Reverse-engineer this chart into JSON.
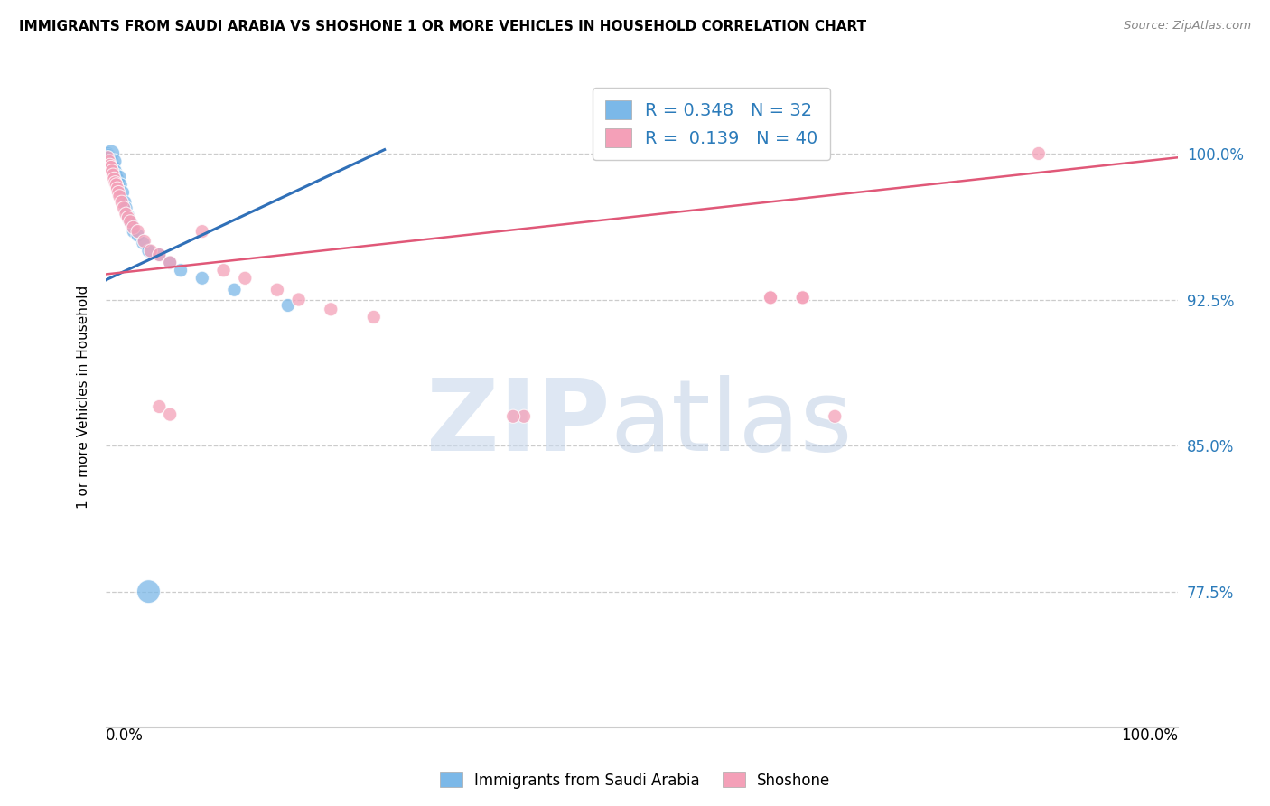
{
  "title": "IMMIGRANTS FROM SAUDI ARABIA VS SHOSHONE 1 OR MORE VEHICLES IN HOUSEHOLD CORRELATION CHART",
  "source": "Source: ZipAtlas.com",
  "ylabel": "1 or more Vehicles in Household",
  "ytick_labels": [
    "77.5%",
    "85.0%",
    "92.5%",
    "100.0%"
  ],
  "ytick_values": [
    0.775,
    0.85,
    0.925,
    1.0
  ],
  "xlim": [
    0.0,
    1.0
  ],
  "ylim": [
    0.705,
    1.045
  ],
  "legend_blue_R": "0.348",
  "legend_blue_N": "32",
  "legend_pink_R": "0.139",
  "legend_pink_N": "40",
  "blue_color": "#7bb8e8",
  "pink_color": "#f4a0b8",
  "blue_line_color": "#3070b8",
  "pink_line_color": "#e05878",
  "blue_line_x": [
    0.0,
    0.26
  ],
  "blue_line_y": [
    0.935,
    1.002
  ],
  "pink_line_x": [
    0.0,
    1.0
  ],
  "pink_line_y": [
    0.938,
    0.998
  ],
  "blue_points_x": [
    0.002,
    0.003,
    0.004,
    0.005,
    0.005,
    0.006,
    0.007,
    0.008,
    0.008,
    0.009,
    0.01,
    0.011,
    0.012,
    0.013,
    0.014,
    0.016,
    0.018,
    0.019,
    0.021,
    0.022,
    0.024,
    0.026,
    0.03,
    0.035,
    0.04,
    0.05,
    0.06,
    0.07,
    0.09,
    0.12,
    0.17,
    0.04
  ],
  "blue_points_y": [
    1.0,
    0.999,
    0.998,
    0.997,
    1.0,
    0.996,
    0.994,
    0.993,
    0.996,
    0.991,
    0.989,
    0.987,
    0.985,
    0.988,
    0.984,
    0.98,
    0.975,
    0.972,
    0.968,
    0.966,
    0.964,
    0.96,
    0.958,
    0.954,
    0.95,
    0.948,
    0.944,
    0.94,
    0.936,
    0.93,
    0.922,
    0.775
  ],
  "blue_sizes": [
    120,
    120,
    120,
    120,
    200,
    120,
    120,
    120,
    150,
    120,
    120,
    120,
    120,
    120,
    120,
    120,
    120,
    120,
    120,
    120,
    120,
    120,
    120,
    120,
    120,
    120,
    120,
    120,
    120,
    120,
    120,
    350
  ],
  "pink_points_x": [
    0.002,
    0.003,
    0.004,
    0.005,
    0.006,
    0.007,
    0.008,
    0.009,
    0.01,
    0.011,
    0.012,
    0.013,
    0.015,
    0.017,
    0.019,
    0.021,
    0.023,
    0.026,
    0.03,
    0.036,
    0.042,
    0.05,
    0.06,
    0.09,
    0.11,
    0.13,
    0.16,
    0.18,
    0.21,
    0.25,
    0.39,
    0.62,
    0.65,
    0.68,
    0.87,
    0.38,
    0.62,
    0.65,
    0.05,
    0.06
  ],
  "pink_points_y": [
    0.998,
    0.996,
    0.994,
    0.993,
    0.991,
    0.989,
    0.987,
    0.985,
    0.984,
    0.982,
    0.98,
    0.978,
    0.975,
    0.972,
    0.969,
    0.967,
    0.965,
    0.962,
    0.96,
    0.955,
    0.95,
    0.948,
    0.944,
    0.96,
    0.94,
    0.936,
    0.93,
    0.925,
    0.92,
    0.916,
    0.865,
    0.926,
    0.926,
    0.865,
    1.0,
    0.865,
    0.926,
    0.926,
    0.87,
    0.866
  ],
  "pink_sizes": [
    120,
    120,
    120,
    120,
    120,
    120,
    120,
    120,
    120,
    120,
    120,
    120,
    120,
    120,
    120,
    120,
    120,
    120,
    120,
    120,
    120,
    120,
    120,
    120,
    120,
    120,
    120,
    120,
    120,
    120,
    120,
    120,
    120,
    120,
    120,
    120,
    120,
    120,
    120,
    120
  ]
}
